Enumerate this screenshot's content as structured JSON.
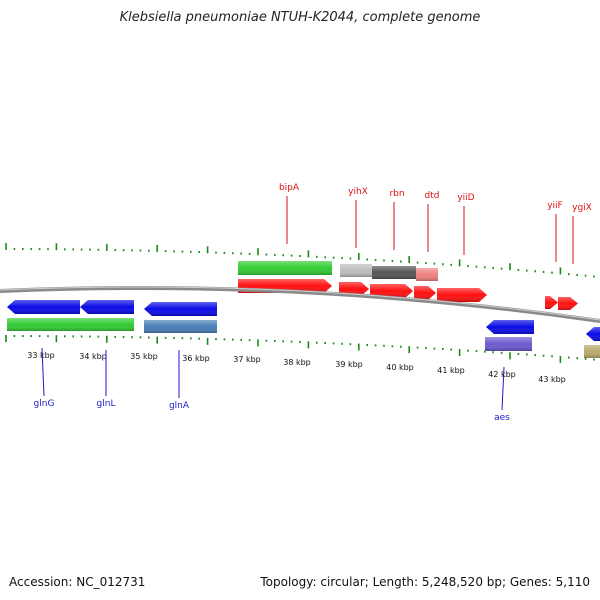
{
  "title": "Klebsiella pneumoniae NTUH-K2044, complete genome",
  "footer": {
    "accession": "Accession: NC_012731",
    "summary": "Topology: circular; Length: 5,248,520 bp; Genes: 5,110"
  },
  "colors": {
    "backbone": "#8a8a8a",
    "tick": "#1a8a1a",
    "forward_gene": "#ff1010",
    "reverse_gene": "#0a0ae6",
    "gene_label_red": "#dd1111",
    "gene_label_blue": "#1a1acc",
    "green_feature": "#33cc33",
    "steelblue_feature": "#4a7fb5",
    "slate_feature": "#6a5acd",
    "khaki_feature": "#b5a96a",
    "grey_feature": "#bdbdbd",
    "dark_feature": "#555555",
    "pink_feature": "#f08080"
  },
  "kbp_labels": [
    "33 kbp",
    "34 kbp",
    "35 kbp",
    "36 kbp",
    "37 kbp",
    "38 kbp",
    "39 kbp",
    "40 kbp",
    "41 kbp",
    "42 kbp",
    "43 kbp"
  ],
  "top_genes": [
    "bipA",
    "yihX",
    "rbn",
    "dtd",
    "yiiD",
    "yiiF",
    "ygiX"
  ],
  "bottom_genes": [
    "glnG",
    "glnL",
    "glnA",
    "aes"
  ]
}
